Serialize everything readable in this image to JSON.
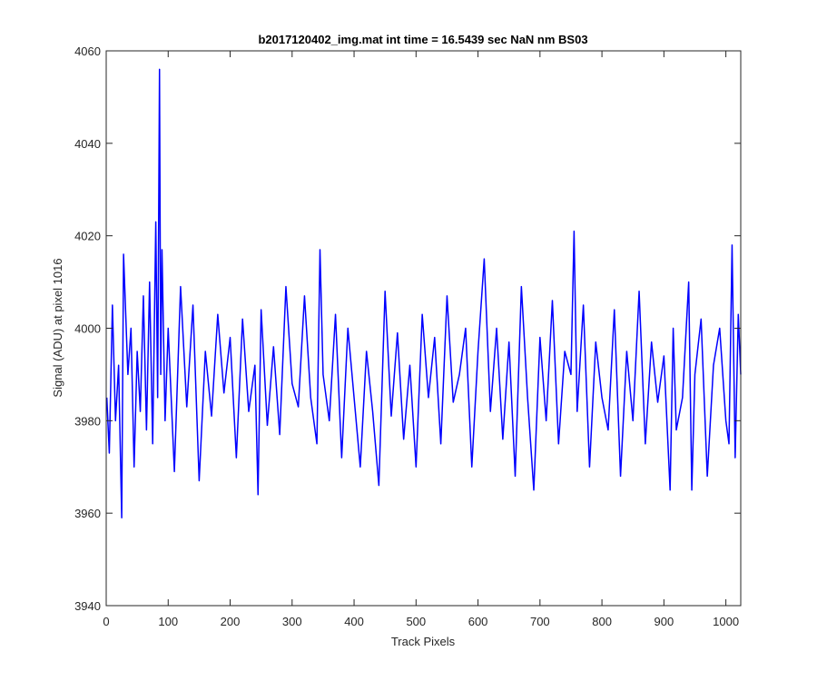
{
  "chart_data": {
    "type": "line",
    "title": "b2017120402_img.mat int time = 16.5439 sec  NaN nm BS03",
    "xlabel": "Track Pixels",
    "ylabel": "Signal (ADU) at pixel 1016",
    "xlim": [
      0,
      1024
    ],
    "ylim": [
      3940,
      4060
    ],
    "xticks": [
      0,
      100,
      200,
      300,
      400,
      500,
      600,
      700,
      800,
      900,
      1000
    ],
    "yticks": [
      3940,
      3960,
      3980,
      4000,
      4020,
      4040,
      4060
    ],
    "grid": false,
    "series": [
      {
        "name": "",
        "color": "#0000ff",
        "x": [
          1,
          5,
          10,
          15,
          20,
          25,
          28,
          35,
          40,
          45,
          50,
          55,
          60,
          65,
          70,
          75,
          80,
          83,
          86,
          88,
          90,
          95,
          100,
          110,
          120,
          130,
          140,
          150,
          160,
          170,
          180,
          190,
          200,
          210,
          220,
          230,
          240,
          245,
          250,
          260,
          270,
          280,
          290,
          300,
          310,
          320,
          330,
          340,
          345,
          350,
          360,
          370,
          380,
          390,
          400,
          410,
          420,
          430,
          440,
          450,
          460,
          470,
          480,
          490,
          500,
          510,
          520,
          530,
          540,
          550,
          560,
          570,
          580,
          590,
          600,
          610,
          620,
          630,
          640,
          650,
          660,
          670,
          680,
          690,
          700,
          710,
          720,
          730,
          740,
          750,
          755,
          760,
          770,
          780,
          790,
          800,
          810,
          820,
          830,
          840,
          850,
          860,
          870,
          880,
          890,
          900,
          910,
          915,
          920,
          930,
          940,
          945,
          950,
          960,
          970,
          980,
          990,
          1000,
          1005,
          1010,
          1015,
          1020,
          1024
        ],
        "y": [
          3985,
          3973,
          4005,
          3980,
          3992,
          3959,
          4016,
          3990,
          4000,
          3970,
          3995,
          3982,
          4007,
          3978,
          4010,
          3975,
          4023,
          3985,
          4056,
          3990,
          4017,
          3980,
          4000,
          3969,
          4009,
          3983,
          4005,
          3967,
          3995,
          3981,
          4003,
          3986,
          3998,
          3972,
          4002,
          3982,
          3992,
          3964,
          4004,
          3979,
          3996,
          3977,
          4009,
          3988,
          3983,
          4007,
          3985,
          3975,
          4017,
          3990,
          3980,
          4003,
          3972,
          4000,
          3985,
          3970,
          3995,
          3982,
          3966,
          4008,
          3981,
          3999,
          3976,
          3992,
          3970,
          4003,
          3985,
          3998,
          3975,
          4007,
          3984,
          3990,
          4000,
          3970,
          3995,
          4015,
          3982,
          4000,
          3976,
          3997,
          3968,
          4009,
          3985,
          3965,
          3998,
          3980,
          4006,
          3975,
          3995,
          3990,
          4021,
          3982,
          4005,
          3970,
          3997,
          3985,
          3978,
          4004,
          3968,
          3995,
          3980,
          4008,
          3975,
          3997,
          3984,
          3994,
          3965,
          4000,
          3978,
          3985,
          4010,
          3965,
          3990,
          4002,
          3968,
          3992,
          4000,
          3980,
          3975,
          4018,
          3972,
          4003,
          3990
        ]
      }
    ]
  }
}
